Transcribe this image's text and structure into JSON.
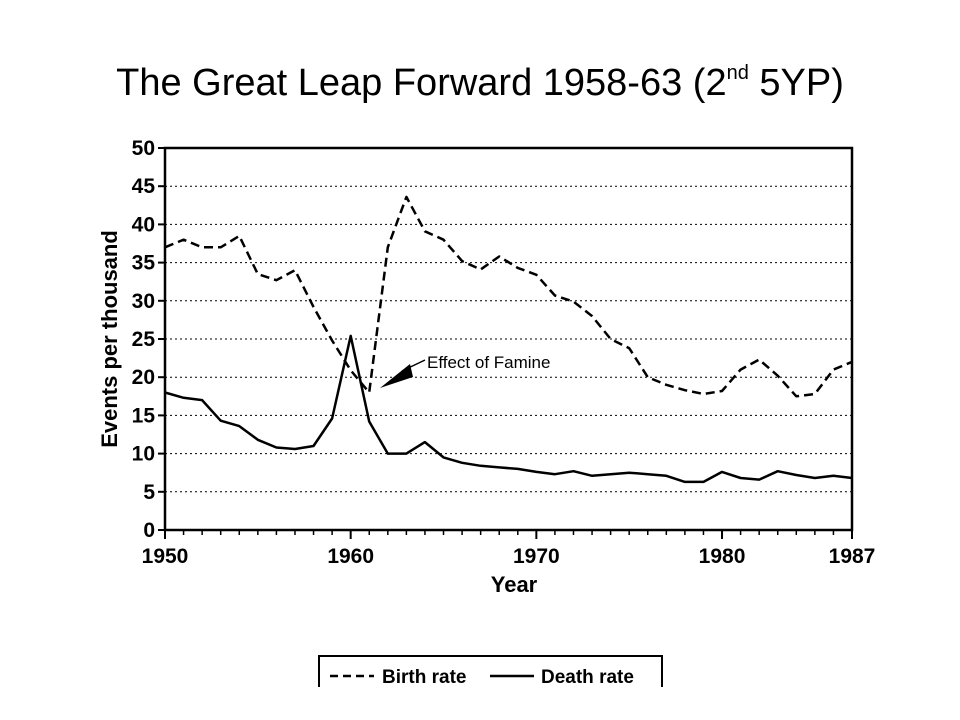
{
  "slide": {
    "title_main": "The Great Leap Forward 1958-63 (2",
    "title_sup": "nd",
    "title_end": " 5YP)"
  },
  "chart_data": {
    "type": "line",
    "title": "",
    "xlabel": "Year",
    "ylabel": "Events per thousand",
    "xlim": [
      1950,
      1987
    ],
    "ylim": [
      0,
      50
    ],
    "x_ticks": [
      1950,
      1960,
      1970,
      1980,
      1987
    ],
    "y_ticks": [
      0,
      5,
      10,
      15,
      20,
      25,
      30,
      35,
      40,
      45,
      50
    ],
    "grid": "horizontal dotted",
    "legend_position": "bottom",
    "x": [
      1950,
      1951,
      1952,
      1953,
      1954,
      1955,
      1956,
      1957,
      1958,
      1959,
      1960,
      1961,
      1962,
      1963,
      1964,
      1965,
      1966,
      1967,
      1968,
      1969,
      1970,
      1971,
      1972,
      1973,
      1974,
      1975,
      1976,
      1977,
      1978,
      1979,
      1980,
      1981,
      1982,
      1983,
      1984,
      1985,
      1986,
      1987
    ],
    "series": [
      {
        "name": "Birth rate",
        "style": "dashed",
        "values": [
          37.0,
          38.0,
          37.0,
          37.0,
          38.5,
          33.5,
          32.7,
          34.0,
          29.2,
          24.8,
          20.9,
          18.0,
          37.0,
          43.6,
          39.1,
          38.0,
          35.2,
          34.1,
          35.8,
          34.3,
          33.4,
          30.7,
          29.9,
          28.0,
          25.0,
          23.8,
          20.0,
          19.0,
          18.3,
          17.8,
          18.2,
          21.0,
          22.3,
          20.2,
          17.5,
          17.8,
          21.0,
          22.0
        ]
      },
      {
        "name": "Death rate",
        "style": "solid",
        "values": [
          18.0,
          17.3,
          17.0,
          14.3,
          13.6,
          11.8,
          10.8,
          10.6,
          11.0,
          14.6,
          25.4,
          14.2,
          10.0,
          10.0,
          11.5,
          9.5,
          8.8,
          8.4,
          8.2,
          8.0,
          7.6,
          7.3,
          7.7,
          7.1,
          7.3,
          7.5,
          7.3,
          7.1,
          6.3,
          6.3,
          7.6,
          6.8,
          6.6,
          7.7,
          7.2,
          6.8,
          7.1,
          6.8
        ]
      }
    ],
    "annotations": [
      {
        "text": "Effect of Famine",
        "x": 1961,
        "y": 18.0
      }
    ]
  }
}
